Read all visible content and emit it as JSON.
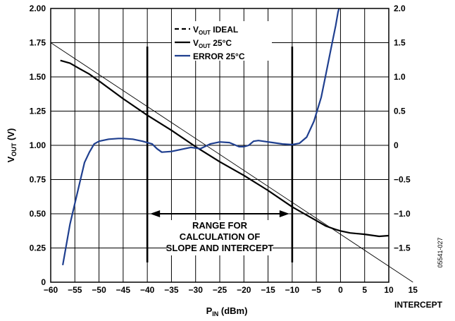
{
  "chart_data": {
    "type": "line",
    "xlabel_main": "P",
    "xlabel_sub": "IN",
    "xlabel_unit": " (dBm)",
    "ylabel_main": "V",
    "ylabel_sub": "OUT",
    "ylabel_unit": " (V)",
    "x_intercept_label": "INTERCEPT",
    "figure_id": "05541-027",
    "xlim": [
      -60,
      10
    ],
    "ylim_left": [
      0,
      2.0
    ],
    "ylim_right": [
      -2.0,
      2.0
    ],
    "x_ticks": [
      -60,
      -55,
      -50,
      -45,
      -40,
      -35,
      -30,
      -25,
      -20,
      -15,
      -10,
      -5,
      0,
      5,
      10,
      15
    ],
    "x_tick_labels": [
      "−60",
      "−55",
      "−50",
      "−45",
      "−40",
      "−35",
      "−30",
      "−25",
      "−20",
      "−15",
      "−10",
      "−5",
      "0",
      "5",
      "10",
      "15"
    ],
    "y_left_ticks": [
      0,
      0.25,
      0.5,
      0.75,
      1.0,
      1.25,
      1.5,
      1.75,
      2.0
    ],
    "y_left_tick_labels": [
      "0",
      "0.25",
      "0.50",
      "0.75",
      "1.00",
      "1.25",
      "1.50",
      "1.75",
      "2.00"
    ],
    "y_right_ticks": [
      -1.5,
      -1.0,
      -0.5,
      0,
      0.5,
      1.0,
      1.5,
      2.0
    ],
    "y_right_tick_labels": [
      "−1.5",
      "−1.0",
      "−0.5",
      "0",
      "0.5",
      "1.0",
      "1.5",
      "2.0"
    ],
    "grid": true,
    "legend_position": "top-center",
    "legend": [
      {
        "main": "V",
        "sub": "OUT",
        "rest": " IDEAL",
        "style": "dashed",
        "color": "#000000"
      },
      {
        "main": "V",
        "sub": "OUT",
        "rest": " 25°C",
        "style": "solid",
        "color": "#000000"
      },
      {
        "main": "ERROR 25°C",
        "sub": "",
        "rest": "",
        "style": "solid",
        "color": "#1f3f8f"
      }
    ],
    "annotation": {
      "lines": [
        "RANGE FOR",
        "CALCULATION OF",
        "SLOPE AND INTERCEPT"
      ],
      "x_start": -40,
      "x_end": -10
    },
    "series": [
      {
        "name": "VOUT IDEAL",
        "axis": "left",
        "style": "thin",
        "color": "#000000",
        "x": [
          -60,
          15
        ],
        "y": [
          1.75,
          0
        ]
      },
      {
        "name": "VOUT 25°C",
        "axis": "left",
        "style": "solid",
        "color": "#000000",
        "x": [
          -58,
          -56,
          -54,
          -52,
          -50,
          -45,
          -40,
          -35,
          -30,
          -25,
          -20,
          -15,
          -10,
          -7,
          -5,
          -3,
          -1,
          0,
          2,
          5,
          8,
          10
        ],
        "y": [
          1.62,
          1.6,
          1.56,
          1.52,
          1.47,
          1.34,
          1.22,
          1.11,
          0.99,
          0.88,
          0.78,
          0.67,
          0.55,
          0.49,
          0.45,
          0.41,
          0.385,
          0.375,
          0.36,
          0.35,
          0.335,
          0.34
        ]
      },
      {
        "name": "ERROR 25°C",
        "axis": "right",
        "style": "solid",
        "color": "#1f3f8f",
        "x": [
          -57.5,
          -56,
          -54,
          -53,
          -52,
          -51,
          -50,
          -48,
          -46,
          -45,
          -43,
          -41,
          -39,
          -38,
          -37,
          -35,
          -33,
          -31,
          -29,
          -27,
          -25,
          -23,
          -21,
          -20,
          -19,
          -18,
          -17,
          -16,
          -14,
          -12,
          -10,
          -8.5,
          -7,
          -5.5,
          -4,
          -3,
          -2,
          -1,
          -0.5,
          -0.3
        ],
        "y": [
          -1.75,
          -1.15,
          -0.55,
          -0.25,
          -0.1,
          0.02,
          0.06,
          0.09,
          0.1,
          0.1,
          0.09,
          0.06,
          0.02,
          -0.05,
          -0.1,
          -0.09,
          -0.06,
          -0.03,
          -0.05,
          0.02,
          0.05,
          0.04,
          -0.02,
          -0.02,
          0.0,
          0.06,
          0.07,
          0.06,
          0.04,
          0.02,
          0.01,
          0.03,
          0.12,
          0.35,
          0.7,
          1.05,
          1.4,
          1.75,
          1.95,
          2.0
        ]
      }
    ]
  }
}
